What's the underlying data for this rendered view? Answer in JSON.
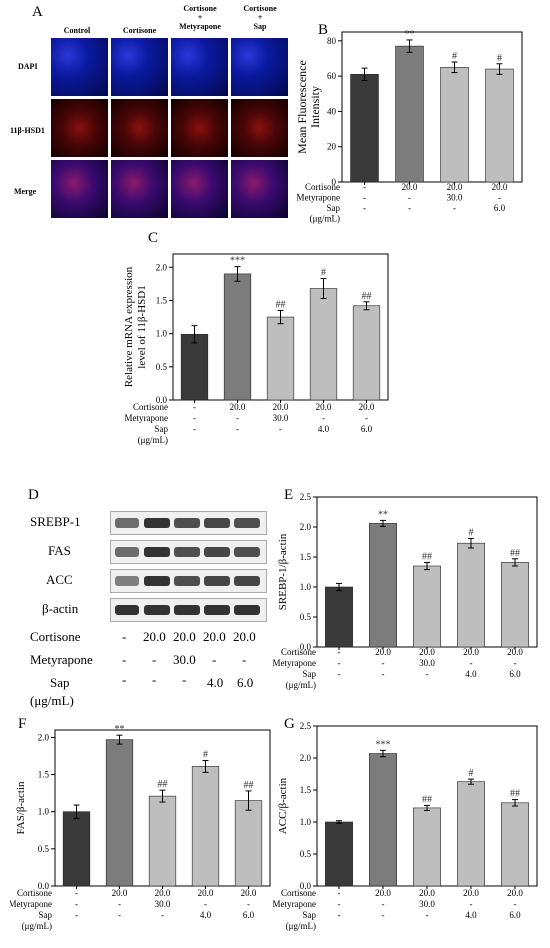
{
  "panels": {
    "A": "A",
    "B": "B",
    "C": "C",
    "D": "D",
    "E": "E",
    "F": "F",
    "G": "G"
  },
  "micro": {
    "cols": [
      "Control",
      "Cortisone",
      "Cortisone\n+\nMetyrapone",
      "Cortisone\n+\nSap"
    ],
    "rows": [
      "DAPI",
      "11β-HSD1",
      "Merge"
    ]
  },
  "western": {
    "bands": [
      "SREBP-1",
      "FAS",
      "ACC",
      "β-actin"
    ],
    "cortisone_label": "Cortisone",
    "metyrapone_label": "Metyrapone",
    "sap_label": "Sap",
    "unit_label": "(μg/mL)",
    "cortisone": [
      "-",
      "20.0",
      "20.0",
      "20.0",
      "20.0"
    ],
    "metyrapone": [
      "-",
      "-",
      "30.0",
      "-",
      "-"
    ],
    "sap": [
      "-",
      "-",
      "-",
      "4.0",
      "6.0"
    ]
  },
  "chart_data": [
    {
      "panel": "B",
      "type": "bar",
      "ylabel": "Mean Fluorescence Intensity",
      "ylim": [
        0,
        85
      ],
      "yticks": [
        0,
        20,
        40,
        60,
        80
      ],
      "values": [
        61,
        77,
        65,
        64
      ],
      "errors": [
        3.5,
        3.5,
        3,
        3
      ],
      "sig": [
        "",
        "**",
        "#",
        "#"
      ],
      "colors": [
        "#3a3a3a",
        "#7c7c7c",
        "#bebebe",
        "#bebebe"
      ],
      "rows": [
        {
          "label": "Cortisone",
          "vals": [
            "-",
            "20.0",
            "20.0",
            "20.0"
          ]
        },
        {
          "label": "Metyrapone",
          "vals": [
            "-",
            "-",
            "30.0",
            "-"
          ]
        },
        {
          "label": "Sap",
          "vals": [
            "-",
            "-",
            "-",
            "6.0"
          ]
        },
        {
          "label": "(μg/mL)",
          "vals": [
            "",
            "",
            "",
            ""
          ]
        }
      ]
    },
    {
      "panel": "C",
      "type": "bar",
      "ylabel": "Relative mRNA expression level of 11β-HSD1",
      "ylim": [
        0,
        2.2
      ],
      "yticks": [
        0.0,
        0.5,
        1.0,
        1.5,
        2.0
      ],
      "values": [
        0.99,
        1.9,
        1.25,
        1.68,
        1.42
      ],
      "errors": [
        0.13,
        0.11,
        0.1,
        0.15,
        0.06
      ],
      "sig": [
        "",
        "***",
        "##",
        "#",
        "##"
      ],
      "colors": [
        "#3a3a3a",
        "#7c7c7c",
        "#bebebe",
        "#bebebe",
        "#bebebe"
      ],
      "rows": [
        {
          "label": "Cortisone",
          "vals": [
            "-",
            "20.0",
            "20.0",
            "20.0",
            "20.0"
          ]
        },
        {
          "label": "Metyrapone",
          "vals": [
            "-",
            "-",
            "30.0",
            "-",
            "-"
          ]
        },
        {
          "label": "Sap",
          "vals": [
            "-",
            "-",
            "-",
            "4.0",
            "6.0"
          ]
        },
        {
          "label": "(μg/mL)",
          "vals": [
            "",
            "",
            "",
            "",
            ""
          ]
        }
      ]
    },
    {
      "panel": "E",
      "type": "bar",
      "ylabel": "SREBP-1/β-actin",
      "ylim": [
        0,
        2.5
      ],
      "yticks": [
        0.0,
        0.5,
        1.0,
        1.5,
        2.0,
        2.5
      ],
      "values": [
        1.0,
        2.06,
        1.35,
        1.73,
        1.41
      ],
      "errors": [
        0.06,
        0.05,
        0.06,
        0.08,
        0.06
      ],
      "sig": [
        "",
        "**",
        "##",
        "#",
        "##"
      ],
      "colors": [
        "#3a3a3a",
        "#7c7c7c",
        "#bebebe",
        "#bebebe",
        "#bebebe"
      ],
      "rows": [
        {
          "label": "Cortisone",
          "vals": [
            "-",
            "20.0",
            "20.0",
            "20.0",
            "20.0"
          ]
        },
        {
          "label": "Metyrapone",
          "vals": [
            "-",
            "-",
            "30.0",
            "-",
            "-"
          ]
        },
        {
          "label": "Sap",
          "vals": [
            "-",
            "-",
            "-",
            "4.0",
            "6.0"
          ]
        },
        {
          "label": "(μg/mL)",
          "vals": [
            "",
            "",
            "",
            "",
            ""
          ]
        }
      ]
    },
    {
      "panel": "F",
      "type": "bar",
      "ylabel": "FAS/β-actin",
      "ylim": [
        0,
        2.1
      ],
      "yticks": [
        0.0,
        0.5,
        1.0,
        1.5,
        2.0
      ],
      "values": [
        1.0,
        1.97,
        1.21,
        1.61,
        1.15
      ],
      "errors": [
        0.09,
        0.06,
        0.08,
        0.08,
        0.13
      ],
      "sig": [
        "",
        "**",
        "##",
        "#",
        "##"
      ],
      "colors": [
        "#3a3a3a",
        "#7c7c7c",
        "#bebebe",
        "#bebebe",
        "#bebebe"
      ],
      "rows": [
        {
          "label": "Cortisone",
          "vals": [
            "-",
            "20.0",
            "20.0",
            "20.0",
            "20.0"
          ]
        },
        {
          "label": "Metyrapone",
          "vals": [
            "-",
            "-",
            "30.0",
            "-",
            "-"
          ]
        },
        {
          "label": "Sap",
          "vals": [
            "-",
            "-",
            "-",
            "4.0",
            "6.0"
          ]
        },
        {
          "label": "(μg/mL)",
          "vals": [
            "",
            "",
            "",
            "",
            ""
          ]
        }
      ]
    },
    {
      "panel": "G",
      "type": "bar",
      "ylabel": "ACC/β-actin",
      "ylim": [
        0,
        2.5
      ],
      "yticks": [
        0.0,
        0.5,
        1.0,
        1.5,
        2.0,
        2.5
      ],
      "values": [
        1.0,
        2.07,
        1.22,
        1.63,
        1.3
      ],
      "errors": [
        0.02,
        0.05,
        0.04,
        0.04,
        0.05
      ],
      "sig": [
        "",
        "***",
        "##",
        "#",
        "##"
      ],
      "colors": [
        "#3a3a3a",
        "#7c7c7c",
        "#bebebe",
        "#bebebe",
        "#bebebe"
      ],
      "rows": [
        {
          "label": "Cortisone",
          "vals": [
            "-",
            "20.0",
            "20.0",
            "20.0",
            "20.0"
          ]
        },
        {
          "label": "Metyrapone",
          "vals": [
            "-",
            "-",
            "30.0",
            "-",
            "-"
          ]
        },
        {
          "label": "Sap",
          "vals": [
            "-",
            "-",
            "-",
            "4.0",
            "6.0"
          ]
        },
        {
          "label": "(μg/mL)",
          "vals": [
            "",
            "",
            "",
            "",
            ""
          ]
        }
      ]
    }
  ]
}
